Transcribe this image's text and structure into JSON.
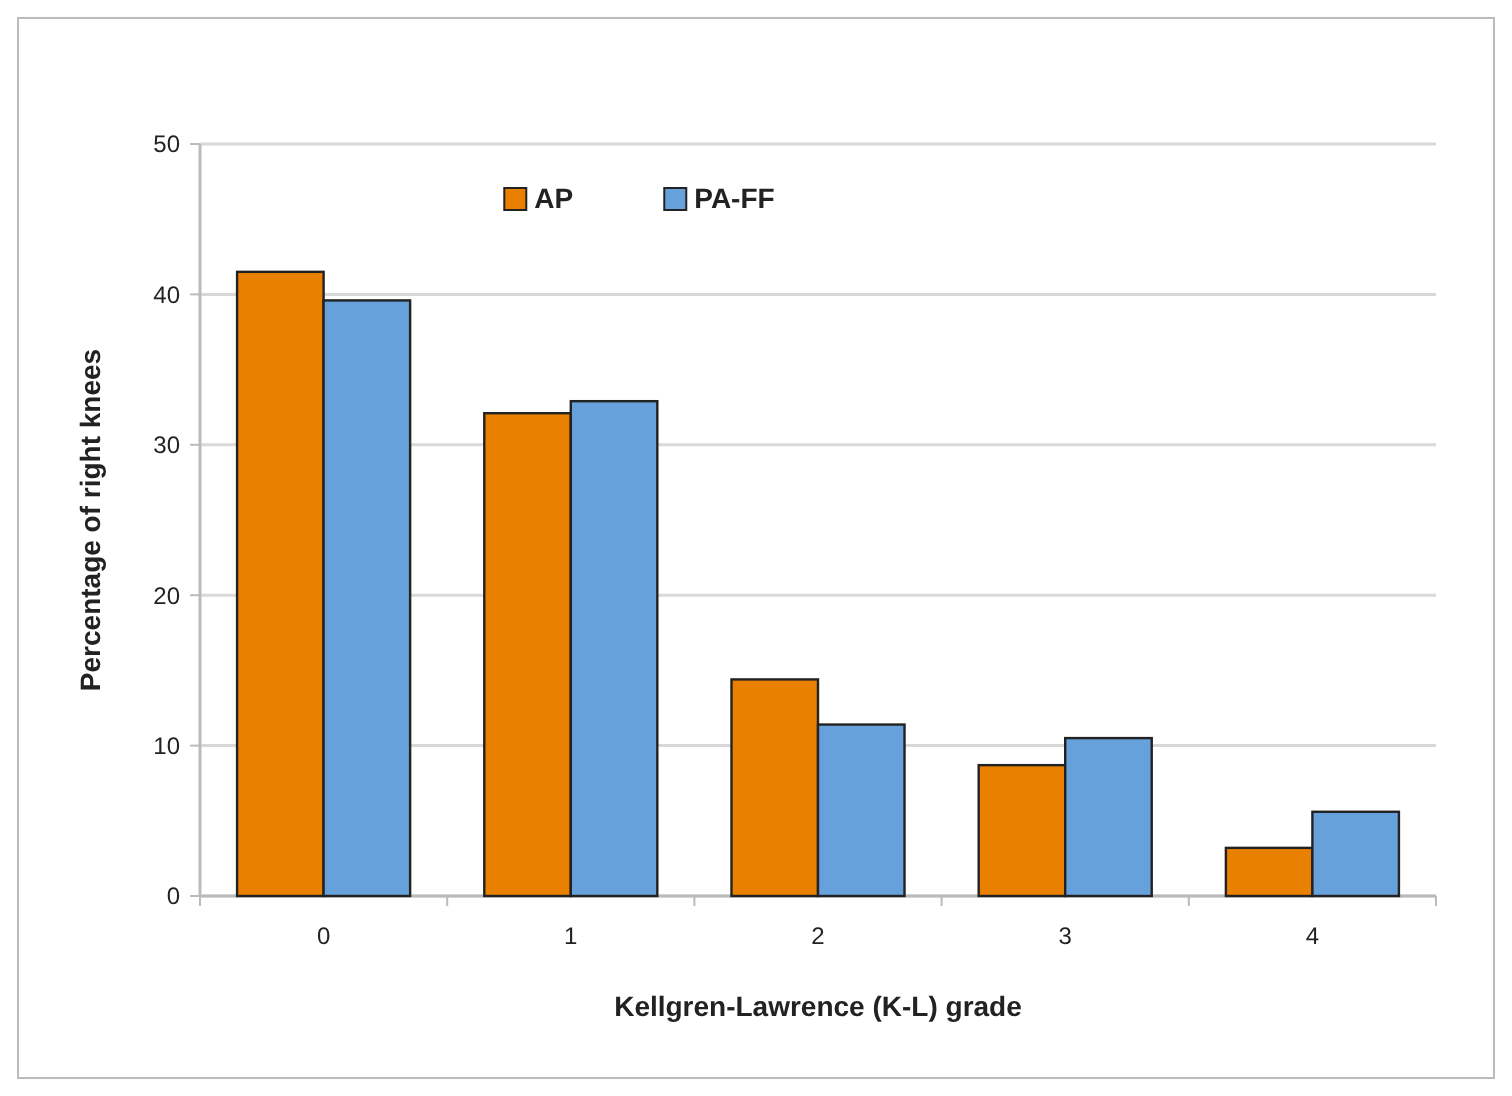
{
  "chart_data": {
    "type": "bar",
    "xlabel": "Kellgren-Lawrence (K-L) grade",
    "ylabel": "Percentage of right knees",
    "categories": [
      "0",
      "1",
      "2",
      "3",
      "4"
    ],
    "series": [
      {
        "name": "AP",
        "color": "#e98000",
        "values": [
          41.5,
          32.1,
          14.4,
          8.7,
          3.2
        ]
      },
      {
        "name": "PA-FF",
        "color": "#66a1dc",
        "values": [
          39.6,
          32.9,
          11.4,
          10.5,
          5.6
        ]
      }
    ],
    "ylim": [
      0,
      50
    ],
    "yticks": [
      0,
      10,
      20,
      30,
      40,
      50
    ],
    "grid": "y",
    "legend": "top"
  }
}
